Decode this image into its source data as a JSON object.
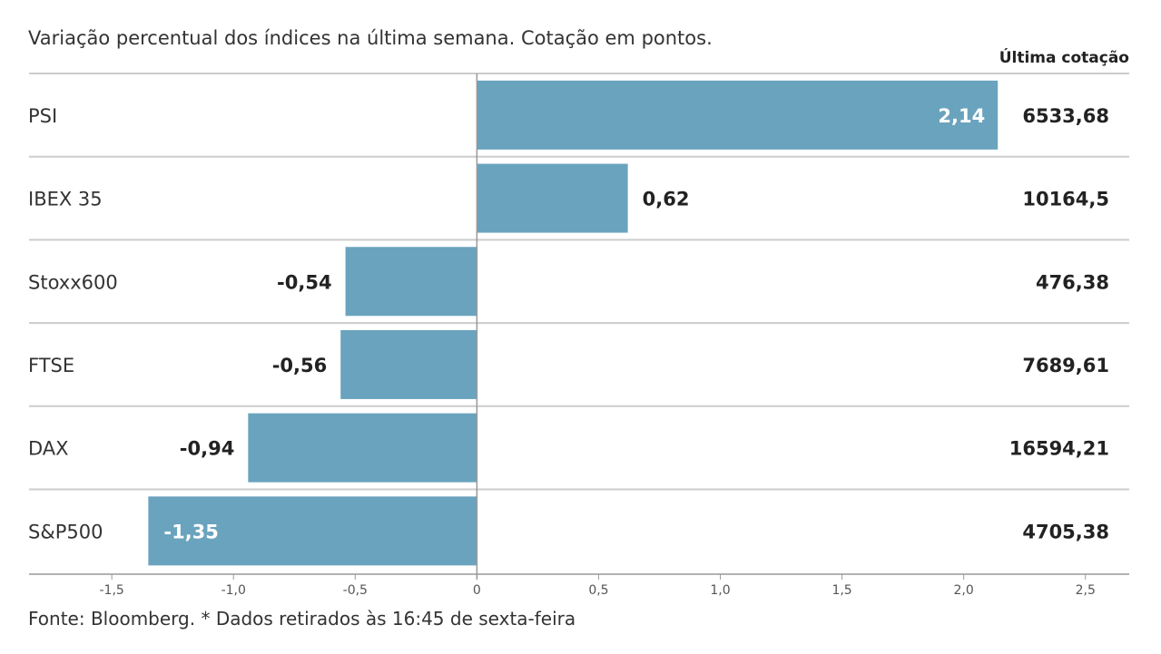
{
  "subtitle": "Variação percentual dos índices na última semana. Cotação em pontos.",
  "quote_header": "Última cotação",
  "source": "Fonte: Bloomberg.  * Dados retirados às 16:45 de sexta-feira",
  "colors": {
    "bar": "#6aa3be",
    "gridline": "#cccccc",
    "axis": "#999999",
    "label_inside": "#ffffff",
    "label_outside": "#222222"
  },
  "chart_data": {
    "type": "bar",
    "orientation": "horizontal",
    "categories": [
      "PSI",
      "IBEX 35",
      "Stoxx600",
      "FTSE",
      "DAX",
      "S&P500"
    ],
    "values": [
      2.14,
      0.62,
      -0.54,
      -0.56,
      -0.94,
      -1.35
    ],
    "value_labels": [
      "2,14",
      "0,62",
      "-0,54",
      "-0,56",
      "-0,94",
      "-1,35"
    ],
    "label_inside": [
      true,
      false,
      false,
      false,
      false,
      true
    ],
    "last_quotes": [
      "6533,68",
      "10164,5",
      "476,38",
      "7689,61",
      "16594,21",
      "4705,38"
    ],
    "xlim": [
      -1.84,
      2.68
    ],
    "xticks": [
      -1.5,
      -1.0,
      -0.5,
      0,
      0.5,
      1.0,
      1.5,
      2.0,
      2.5
    ],
    "xtick_labels": [
      "-1,5",
      "-1,0",
      "-0,5",
      "0",
      "0,5",
      "1,0",
      "1,5",
      "2,0",
      "2,5"
    ],
    "grid": "horizontal row separators",
    "legend": "none"
  }
}
